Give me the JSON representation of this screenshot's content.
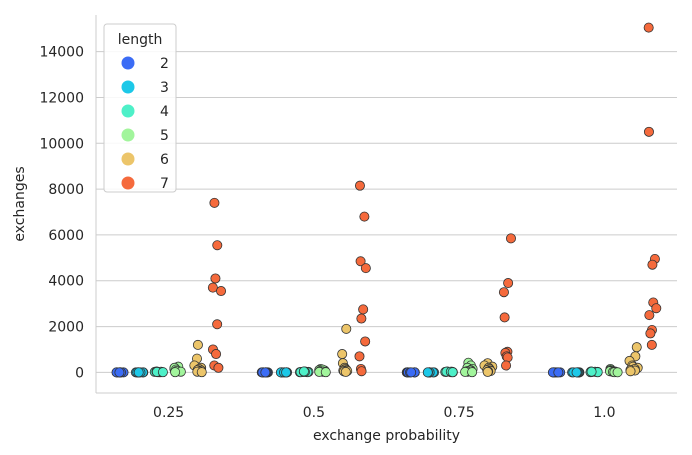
{
  "chart_data": {
    "type": "scatter",
    "style": "strip plot with dodged hue groups",
    "xlabel": "exchange probability",
    "ylabel": "exchanges",
    "categories": [
      "0.25",
      "0.5",
      "0.75",
      "1.0"
    ],
    "ylim": [
      -900,
      15600
    ],
    "yticks": [
      0,
      2000,
      4000,
      6000,
      8000,
      10000,
      12000,
      14000
    ],
    "grid": "horizontal",
    "legend": {
      "title": "length",
      "placement": "top-left",
      "entries": [
        {
          "name": "2",
          "color": "#3b6cf5"
        },
        {
          "name": "3",
          "color": "#1cc8e8"
        },
        {
          "name": "4",
          "color": "#4ef0c8"
        },
        {
          "name": "5",
          "color": "#a2f59c"
        },
        {
          "name": "6",
          "color": "#ecc56a"
        },
        {
          "name": "7",
          "color": "#f56a3c"
        }
      ]
    },
    "series": [
      {
        "name": "2",
        "values": [
          [
            0,
            0,
            0,
            0,
            0,
            0,
            0,
            0,
            0,
            0
          ],
          [
            0,
            0,
            0,
            0,
            0,
            0,
            0,
            0,
            0,
            0
          ],
          [
            0,
            0,
            0,
            0,
            0,
            0,
            0,
            0,
            0,
            0
          ],
          [
            0,
            0,
            0,
            0,
            0,
            0,
            0,
            0,
            0,
            0
          ]
        ]
      },
      {
        "name": "3",
        "values": [
          [
            0,
            0,
            0,
            0,
            0,
            0,
            0,
            0,
            0,
            0
          ],
          [
            0,
            0,
            0,
            0,
            0,
            0,
            0,
            0,
            0,
            0
          ],
          [
            0,
            0,
            0,
            0,
            0,
            0,
            0,
            0,
            0,
            0
          ],
          [
            0,
            0,
            0,
            0,
            0,
            0,
            0,
            0,
            0,
            0
          ]
        ]
      },
      {
        "name": "4",
        "values": [
          [
            10,
            20,
            30,
            10,
            40,
            20,
            10,
            30,
            20,
            10
          ],
          [
            10,
            20,
            40,
            30,
            10,
            20,
            30,
            10,
            20,
            40
          ],
          [
            20,
            30,
            10,
            40,
            20,
            30,
            10,
            20,
            30,
            10
          ],
          [
            20,
            10,
            30,
            20,
            40,
            10,
            30,
            20,
            10,
            30
          ]
        ]
      },
      {
        "name": "5",
        "values": [
          [
            250,
            150,
            100,
            50,
            200,
            80,
            120,
            60,
            30,
            10
          ],
          [
            150,
            100,
            80,
            50,
            120,
            60,
            40,
            30,
            20,
            10
          ],
          [
            420,
            300,
            200,
            150,
            100,
            80,
            50,
            30,
            20,
            10
          ],
          [
            150,
            100,
            80,
            60,
            50,
            40,
            30,
            20,
            10,
            5
          ]
        ]
      },
      {
        "name": "6",
        "values": [
          [
            1200,
            600,
            300,
            200,
            150,
            100,
            80,
            50,
            30,
            10
          ],
          [
            1900,
            800,
            400,
            200,
            150,
            100,
            80,
            60,
            40,
            20
          ],
          [
            400,
            300,
            250,
            200,
            150,
            100,
            80,
            60,
            40,
            20
          ],
          [
            1100,
            700,
            500,
            300,
            250,
            200,
            150,
            100,
            80,
            50
          ]
        ]
      },
      {
        "name": "7",
        "values": [
          [
            7400,
            5550,
            4100,
            3700,
            3550,
            2100,
            1000,
            800,
            300,
            200
          ],
          [
            8150,
            6800,
            4850,
            4550,
            2750,
            2350,
            1350,
            700,
            150,
            50
          ],
          [
            5850,
            3900,
            3500,
            2400,
            900,
            850,
            700,
            650,
            300
          ],
          [
            15050,
            10500,
            4950,
            4700,
            3050,
            2800,
            2500,
            1850,
            1700,
            1200
          ]
        ]
      }
    ]
  }
}
